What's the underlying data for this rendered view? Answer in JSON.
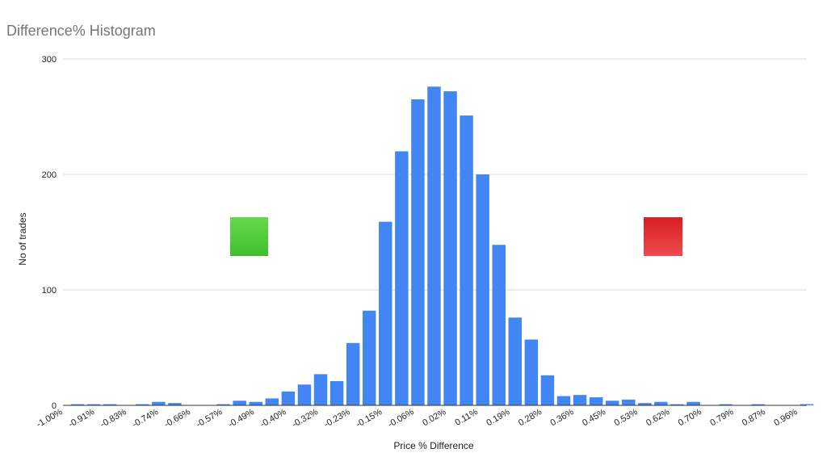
{
  "chart_data": {
    "type": "bar",
    "title": "Difference% Histogram",
    "xlabel": "Price % Difference",
    "ylabel": "No of trades",
    "ylim": [
      0,
      300
    ],
    "yticks": [
      0,
      100,
      200,
      300
    ],
    "grid": true,
    "xtick_labels": [
      "-1.00%",
      "-0.91%",
      "-0.83%",
      "-0.74%",
      "-0.66%",
      "-0.57%",
      "-0.49%",
      "-0.40%",
      "-0.32%",
      "-0.23%",
      "-0.15%",
      "-0.06%",
      "0.02%",
      "0.11%",
      "0.19%",
      "0.28%",
      "0.36%",
      "0.45%",
      "0.53%",
      "0.62%",
      "0.70%",
      "0.79%",
      "0.87%",
      "0.96%"
    ],
    "values": [
      1,
      1,
      1,
      0,
      1,
      3,
      2,
      0,
      0,
      1,
      4,
      3,
      6,
      12,
      18,
      27,
      21,
      54,
      82,
      159,
      220,
      265,
      276,
      272,
      251,
      200,
      139,
      76,
      57,
      26,
      8,
      9,
      7,
      4,
      5,
      2,
      3,
      1,
      3,
      0,
      1,
      0,
      1,
      0,
      0,
      1
    ],
    "markers": [
      {
        "name": "green-square",
        "color": "#4ccd3a"
      },
      {
        "name": "red-square",
        "color": "#e0262b"
      }
    ],
    "bar_color": "#4285f4"
  }
}
